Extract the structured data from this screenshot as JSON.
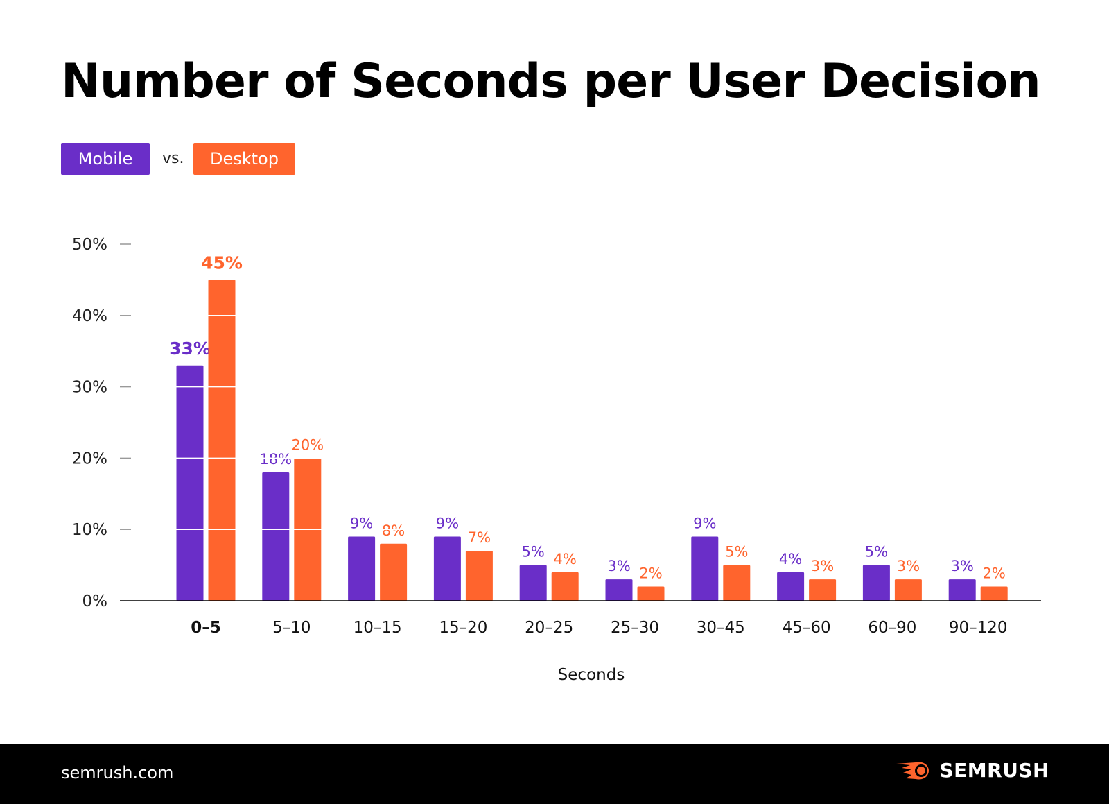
{
  "colors": {
    "mobile": "#6a2ec8",
    "desktop": "#ff642d"
  },
  "legend": {
    "mobile": "Mobile",
    "vs": "vs.",
    "desktop": "Desktop"
  },
  "footer": {
    "site": "semrush.com",
    "logo": "SEMRUSH"
  },
  "chart_data": {
    "type": "bar",
    "title": "Number of Seconds per User Decision",
    "xlabel": "Seconds",
    "ylabel": "",
    "ylim": [
      0,
      50
    ],
    "yticks": [
      "0%",
      "10%",
      "20%",
      "30%",
      "40%",
      "50%"
    ],
    "legend_position": "top-left",
    "categories": [
      "0–5",
      "5–10",
      "10–15",
      "15–20",
      "20–25",
      "25–30",
      "30–45",
      "45–60",
      "60–90",
      "90–120"
    ],
    "series": [
      {
        "name": "Mobile",
        "values": [
          33,
          18,
          9,
          9,
          5,
          3,
          9,
          4,
          5,
          3
        ],
        "labels": [
          "33%",
          "18%",
          "9%",
          "9%",
          "5%",
          "3%",
          "9%",
          "4%",
          "5%",
          "3%"
        ]
      },
      {
        "name": "Desktop",
        "values": [
          45,
          20,
          8,
          7,
          4,
          2,
          5,
          3,
          3,
          2
        ],
        "labels": [
          "45%",
          "20%",
          "8%",
          "7%",
          "4%",
          "2%",
          "5%",
          "3%",
          "3%",
          "2%"
        ]
      }
    ]
  }
}
